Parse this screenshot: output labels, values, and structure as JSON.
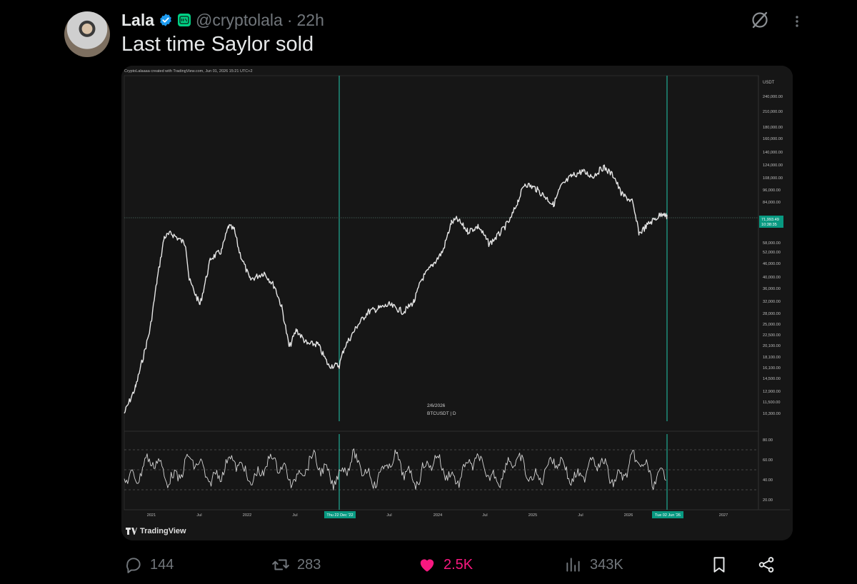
{
  "post": {
    "author_name": "Lala",
    "handle": "@cryptolala",
    "separator": "·",
    "time": "22h",
    "text": "Last time Saylor sold"
  },
  "chart_image": {
    "watermark_text": "CryptoLalaaaa created with TradingView.com, Jun 01, 2026 15:21 UTC+2",
    "logo_text": "TradingView",
    "symbol_date": "2/6/2026",
    "symbol_text": "BTCUSDT | D",
    "currency_label": "USDT",
    "current_price": "71,993.49",
    "countdown": "10:38:35",
    "marker_left_label": "Thu 22 Dec '22",
    "marker_right_label": "Tue 02 Jun '26",
    "price_ticks": [
      "240,000.00",
      "210,000.00",
      "180,000.00",
      "160,000.00",
      "140,000.00",
      "124,000.00",
      "108,000.00",
      "96,000.00",
      "84,000.00",
      "58,000.00",
      "52,000.00",
      "46,000.00",
      "40,000.00",
      "36,000.00",
      "32,000.00",
      "28,000.00",
      "25,000.00",
      "22,500.00",
      "20,100.00",
      "18,100.00",
      "16,100.00",
      "14,500.00",
      "12,900.00",
      "11,500.00",
      "10,300.00"
    ],
    "rsi_ticks": [
      "80.00",
      "60.00",
      "40.00",
      "20.00"
    ],
    "x_ticks": [
      "2021",
      "Jul",
      "2022",
      "Jul",
      "2023",
      "Jul",
      "2024",
      "Jul",
      "2025",
      "Jul",
      "2026",
      "2027"
    ],
    "colors": {
      "marker_line": "#22ab94",
      "price_tag": "#089981",
      "candles": "#e6e6e6",
      "background": "#161616"
    }
  },
  "actions": {
    "replies": "144",
    "reposts": "283",
    "likes": "2.5K",
    "views": "343K"
  },
  "colors": {
    "accent_like": "#f91880",
    "verified": "#1d9bf0",
    "muted": "#71767b"
  }
}
